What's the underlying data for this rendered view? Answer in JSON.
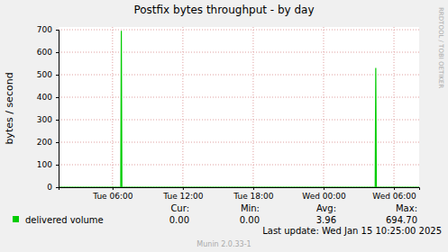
{
  "chart_data": {
    "type": "line",
    "title": "Postfix bytes throughput - by day",
    "y_label": "bytes / second",
    "side_text": "RRDTOOL / TOBI OETIKER",
    "x": [
      1.4,
      6.7,
      6.75,
      6.8,
      28.4,
      28.45,
      28.5,
      32.15
    ],
    "series": [
      {
        "name": "delivered volume",
        "color": "#00cc00",
        "values": [
          0,
          0,
          694.7,
          0,
          0,
          530,
          0,
          0
        ]
      }
    ],
    "xlim": [
      1.4,
      32.15
    ],
    "xticks": [
      {
        "value": 6,
        "label": "Tue 06:00"
      },
      {
        "value": 12,
        "label": "Tue 12:00"
      },
      {
        "value": 18,
        "label": "Tue 18:00"
      },
      {
        "value": 24,
        "label": "Wed 00:00"
      },
      {
        "value": 30,
        "label": "Wed 06:00"
      }
    ],
    "ylim": [
      0,
      700
    ],
    "yticks": [
      0,
      100,
      200,
      300,
      400,
      500,
      600,
      700
    ],
    "grid": true,
    "stats": {
      "labels": [
        "Cur:",
        "Min:",
        "Avg:",
        "Max:"
      ],
      "values": [
        0,
        0,
        3.96,
        694.7
      ],
      "value_labels": [
        "0.00",
        "0.00",
        "3.96",
        "694.70"
      ]
    },
    "footer": "Last update: Wed Jan 15 10:25:00 2025",
    "credit": "Munin 2.0.33-1"
  }
}
